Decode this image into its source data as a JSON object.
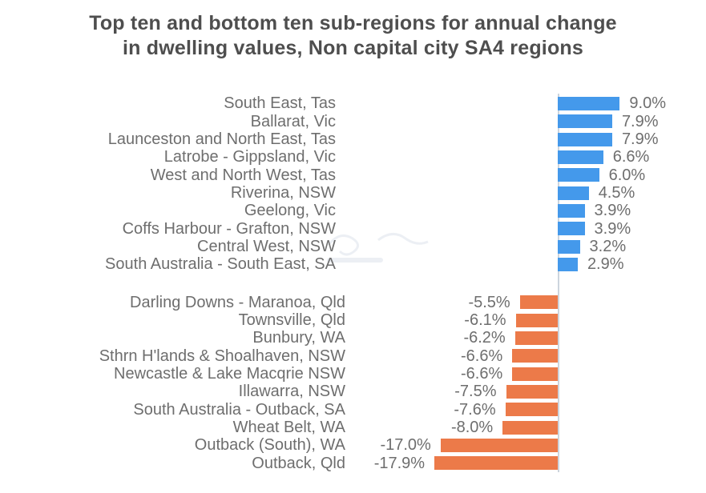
{
  "title": {
    "line1": "Top ten and bottom ten sub-regions for annual change",
    "line2": "in dwelling values, Non capital city SA4 regions"
  },
  "colors": {
    "positive_bar": "#4499EB",
    "negative_bar": "#EC7A49",
    "title_text": "#4E4E4E",
    "label_text": "#6E6E6E",
    "axis_line": "#CCD4DD"
  },
  "chart_data": {
    "type": "bar",
    "orientation": "horizontal",
    "title": "Top ten and bottom ten sub-regions for annual change in dwelling values, Non capital city SA4 regions",
    "unit": "%",
    "value_axis": {
      "baseline": 0,
      "gridlines": false,
      "tick_labels_visible": false
    },
    "data_labels": "outside-end",
    "groups": [
      {
        "name": "top-ten",
        "bar_color": "#4499EB",
        "rows": [
          {
            "label": "South East, Tas",
            "value": 9.0,
            "display": "9.0%"
          },
          {
            "label": "Ballarat, Vic",
            "value": 7.9,
            "display": "7.9%"
          },
          {
            "label": "Launceston and North East, Tas",
            "value": 7.9,
            "display": "7.9%"
          },
          {
            "label": "Latrobe - Gippsland, Vic",
            "value": 6.6,
            "display": "6.6%"
          },
          {
            "label": "West and North West, Tas",
            "value": 6.0,
            "display": "6.0%"
          },
          {
            "label": "Riverina, NSW",
            "value": 4.5,
            "display": "4.5%"
          },
          {
            "label": "Geelong, Vic",
            "value": 3.9,
            "display": "3.9%"
          },
          {
            "label": "Coffs Harbour - Grafton, NSW",
            "value": 3.9,
            "display": "3.9%"
          },
          {
            "label": "Central West, NSW",
            "value": 3.2,
            "display": "3.2%"
          },
          {
            "label": "South Australia - South East, SA",
            "value": 2.9,
            "display": "2.9%"
          }
        ]
      },
      {
        "name": "bottom-ten",
        "bar_color": "#EC7A49",
        "rows": [
          {
            "label": "Darling Downs - Maranoa, Qld",
            "value": -5.5,
            "display": "-5.5%"
          },
          {
            "label": "Townsville, Qld",
            "value": -6.1,
            "display": "-6.1%"
          },
          {
            "label": "Bunbury, WA",
            "value": -6.2,
            "display": "-6.2%"
          },
          {
            "label": "Sthrn H'lands & Shoalhaven, NSW",
            "value": -6.6,
            "display": "-6.6%"
          },
          {
            "label": "Newcastle & Lake Macqrie NSW",
            "value": -6.6,
            "display": "-6.6%"
          },
          {
            "label": "Illawarra, NSW",
            "value": -7.5,
            "display": "-7.5%"
          },
          {
            "label": "South Australia - Outback, SA",
            "value": -7.6,
            "display": "-7.6%"
          },
          {
            "label": "Wheat Belt, WA",
            "value": -8.0,
            "display": "-8.0%"
          },
          {
            "label": "Outback (South), WA",
            "value": -17.0,
            "display": "-17.0%"
          },
          {
            "label": "Outback, Qld",
            "value": -17.9,
            "display": "-17.9%"
          }
        ]
      }
    ]
  }
}
